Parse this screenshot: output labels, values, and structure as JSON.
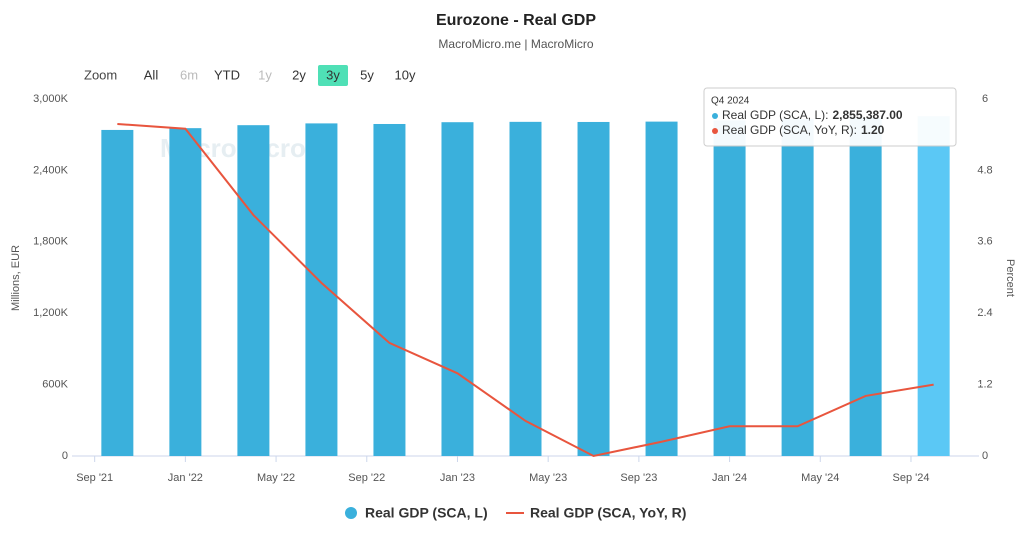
{
  "chart_data": {
    "type": "bar-line",
    "title": "Eurozone - Real GDP",
    "subtitle": "MacroMicro.me | MacroMicro",
    "watermark": "MacroMicro",
    "zoom": {
      "label": "Zoom",
      "buttons": [
        "All",
        "6m",
        "YTD",
        "1y",
        "2y",
        "3y",
        "5y",
        "10y"
      ],
      "disabled": [
        "6m",
        "1y"
      ],
      "active": "3y"
    },
    "y_label": "Millions, EUR",
    "y2_label": "Percent",
    "x": [
      "2021-10",
      "2022-01",
      "2022-04",
      "2022-07",
      "2022-10",
      "2023-01",
      "2023-04",
      "2023-07",
      "2023-10",
      "2024-01",
      "2024-04",
      "2024-07",
      "2024-10"
    ],
    "xlim": [
      "2021-08",
      "2024-12"
    ],
    "xticks": [
      {
        "value": "2021-09",
        "label": "Sep '21"
      },
      {
        "value": "2022-01",
        "label": "Jan '22"
      },
      {
        "value": "2022-05",
        "label": "May '22"
      },
      {
        "value": "2022-09",
        "label": "Sep '22"
      },
      {
        "value": "2023-01",
        "label": "Jan '23"
      },
      {
        "value": "2023-05",
        "label": "May '23"
      },
      {
        "value": "2023-09",
        "label": "Sep '23"
      },
      {
        "value": "2024-01",
        "label": "Jan '24"
      },
      {
        "value": "2024-05",
        "label": "May '24"
      },
      {
        "value": "2024-09",
        "label": "Sep '24"
      }
    ],
    "ylim": [
      0,
      3000000
    ],
    "yticks": [
      0,
      {
        "value": 600000,
        "label": "600K"
      },
      {
        "value": 1200000,
        "label": "1,200K"
      },
      {
        "value": 1800000,
        "label": "1,800K"
      },
      {
        "value": 2400000,
        "label": "2,400K"
      },
      {
        "value": 3000000,
        "label": "3,000K"
      }
    ],
    "y2lim": [
      0,
      6
    ],
    "y2ticks": [
      0,
      1.2,
      2.4,
      3.6,
      4.8,
      6
    ],
    "series": [
      {
        "name": "Real GDP (SCA, L)",
        "color": "#3ab0dc",
        "highlight_color": "#5bc8f5",
        "kind": "bar",
        "values": [
          2740000,
          2755000,
          2780000,
          2795000,
          2790000,
          2805000,
          2808000,
          2807000,
          2810000,
          2820000,
          2830000,
          2840000,
          2855387
        ]
      },
      {
        "name": "Real GDP (SCA, YoY, R)",
        "color": "#e8553e",
        "kind": "line",
        "axis": "y2",
        "values": [
          5.58,
          5.5,
          4.05,
          2.91,
          1.9,
          1.39,
          0.59,
          0,
          0.24,
          0.5,
          0.5,
          1.01,
          1.2
        ]
      }
    ],
    "tooltip": {
      "title": "Q4 2024",
      "rows": [
        {
          "label": "Real GDP (SCA, L):",
          "value": "2,855,387.00"
        },
        {
          "label": "Real GDP (SCA, YoY, R):",
          "value": "1.20"
        }
      ]
    }
  }
}
